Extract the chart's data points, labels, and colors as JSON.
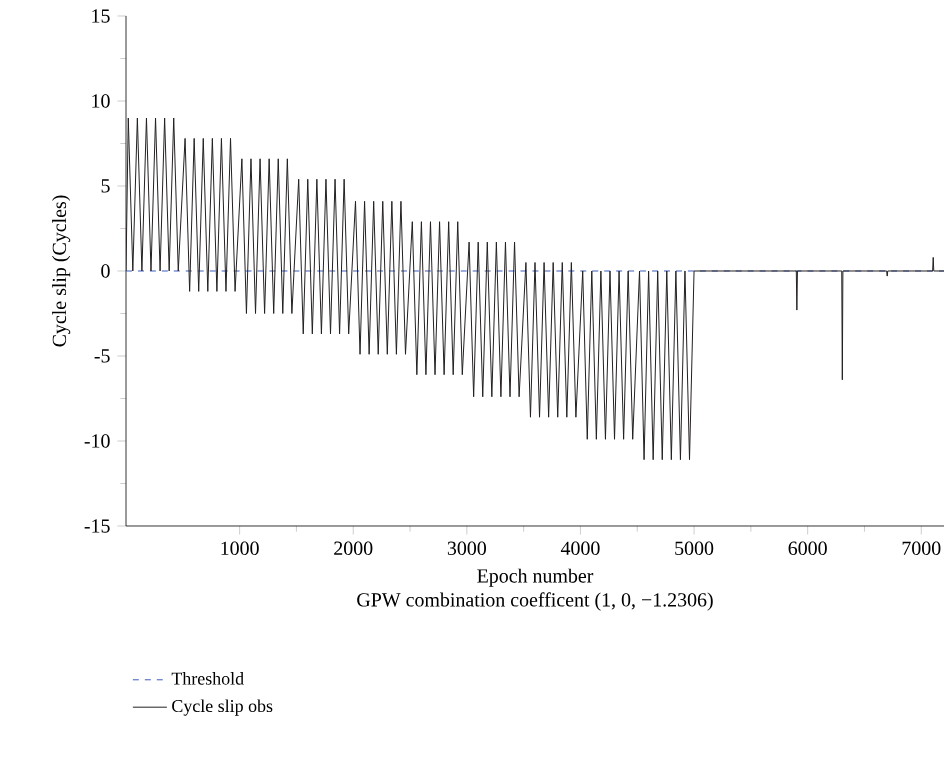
{
  "chart_data": {
    "type": "line",
    "xlabel": "Epoch number",
    "ylabel": "Cycle slip (Cycles)",
    "annotations": [
      "GPW combination coefficent (1, 0, −1.2306)"
    ],
    "xlim": [
      0,
      7200
    ],
    "ylim": [
      -15,
      15
    ],
    "xticks": [
      1000,
      2000,
      3000,
      4000,
      5000,
      6000,
      7000
    ],
    "yticks": [
      -15,
      -10,
      -5,
      0,
      5,
      10,
      15
    ],
    "legend": "bottom",
    "series": [
      {
        "name": "Threshold",
        "color": "#3a5bbf",
        "line_style": "dashed",
        "x": [
          0,
          7200
        ],
        "values": [
          0,
          0
        ]
      },
      {
        "name": "Cycle slip obs",
        "color": "#231f20",
        "line_style": "solid",
        "x": [
          0,
          20,
          60,
          100,
          140,
          180,
          220,
          260,
          300,
          340,
          380,
          420,
          460,
          520,
          560,
          600,
          640,
          680,
          720,
          760,
          800,
          840,
          880,
          920,
          960,
          1020,
          1060,
          1100,
          1140,
          1180,
          1220,
          1260,
          1300,
          1340,
          1380,
          1420,
          1460,
          1520,
          1560,
          1600,
          1640,
          1680,
          1720,
          1760,
          1800,
          1840,
          1880,
          1920,
          1960,
          2020,
          2060,
          2100,
          2140,
          2180,
          2220,
          2260,
          2300,
          2340,
          2380,
          2420,
          2460,
          2520,
          2560,
          2600,
          2640,
          2680,
          2720,
          2760,
          2800,
          2840,
          2880,
          2920,
          2960,
          3020,
          3060,
          3100,
          3140,
          3180,
          3220,
          3260,
          3300,
          3340,
          3380,
          3420,
          3460,
          3520,
          3560,
          3600,
          3640,
          3680,
          3720,
          3760,
          3800,
          3840,
          3880,
          3920,
          3960,
          4020,
          4060,
          4100,
          4140,
          4180,
          4220,
          4260,
          4300,
          4340,
          4380,
          4420,
          4460,
          4520,
          4560,
          4600,
          4640,
          4680,
          4720,
          4760,
          4800,
          4840,
          4880,
          4920,
          4960,
          5000,
          5900,
          5905,
          5910,
          6300,
          6305,
          6310,
          6695,
          6700,
          6705,
          7100,
          7105,
          7110,
          7200
        ],
        "values": [
          0,
          9,
          0,
          9,
          0,
          9,
          0,
          9,
          0,
          9,
          0,
          9,
          0,
          7.8,
          -1.2,
          7.8,
          -1.2,
          7.8,
          -1.2,
          7.8,
          -1.2,
          7.8,
          -1.2,
          7.8,
          -1.2,
          6.6,
          -2.5,
          6.6,
          -2.5,
          6.6,
          -2.5,
          6.6,
          -2.5,
          6.6,
          -2.5,
          6.6,
          -2.5,
          5.4,
          -3.7,
          5.4,
          -3.7,
          5.4,
          -3.7,
          5.4,
          -3.7,
          5.4,
          -3.7,
          5.4,
          -3.7,
          4.1,
          -4.9,
          4.1,
          -4.9,
          4.1,
          -4.9,
          4.1,
          -4.9,
          4.1,
          -4.9,
          4.1,
          -4.9,
          2.9,
          -6.1,
          2.9,
          -6.1,
          2.9,
          -6.1,
          2.9,
          -6.1,
          2.9,
          -6.1,
          2.9,
          -6.1,
          1.7,
          -7.4,
          1.7,
          -7.4,
          1.7,
          -7.4,
          1.7,
          -7.4,
          1.7,
          -7.4,
          1.7,
          -7.4,
          0.5,
          -8.6,
          0.5,
          -8.6,
          0.5,
          -8.6,
          0.5,
          -8.6,
          0.5,
          -8.6,
          0.5,
          -8.6,
          0,
          -9.9,
          0,
          -9.9,
          0,
          -9.9,
          0,
          -9.9,
          0,
          -9.9,
          0,
          -9.9,
          0,
          -11.1,
          0,
          -11.1,
          0,
          -11.1,
          0,
          -11.1,
          0,
          -11.1,
          0,
          -11.1,
          0,
          0,
          -2.3,
          0,
          0,
          -6.4,
          0,
          0,
          -0.3,
          0,
          0,
          0.8,
          0,
          0
        ]
      }
    ]
  }
}
